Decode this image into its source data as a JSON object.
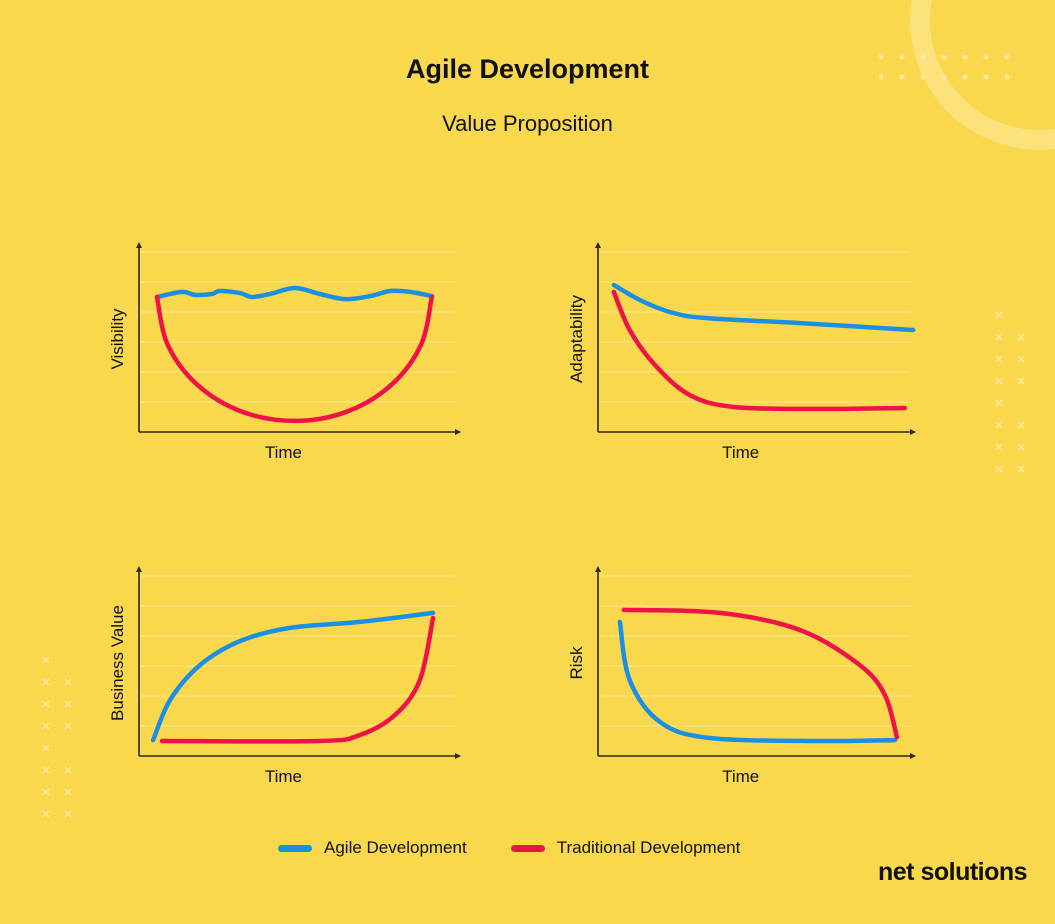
{
  "header": {
    "title": "Agile Development",
    "subtitle": "Value Proposition"
  },
  "colors": {
    "background": "#F9D84D",
    "agile": "#1A8FE3",
    "traditional": "#EE1249",
    "axis": "#2a2a1a",
    "grid": "#FBE58A"
  },
  "legend": [
    {
      "label": "Agile Development",
      "color": "#1A8FE3"
    },
    {
      "label": "Traditional Development",
      "color": "#EE1249"
    }
  ],
  "logo": {
    "text": "net solutions"
  },
  "chart_data": [
    {
      "type": "line",
      "title": "",
      "xlabel": "Time",
      "ylabel": "Visibility",
      "xlim": [
        0,
        10
      ],
      "ylim": [
        0,
        6.2
      ],
      "grid": true,
      "series": [
        {
          "name": "Agile Development",
          "points": [
            [
              0.56,
              4.5
            ],
            [
              1.34,
              4.67
            ],
            [
              1.74,
              4.57
            ],
            [
              2.27,
              4.6
            ],
            [
              2.52,
              4.7
            ],
            [
              3.15,
              4.63
            ],
            [
              3.52,
              4.5
            ],
            [
              4.08,
              4.6
            ],
            [
              4.86,
              4.8
            ],
            [
              5.64,
              4.6
            ],
            [
              6.42,
              4.43
            ],
            [
              7.2,
              4.53
            ],
            [
              7.82,
              4.7
            ],
            [
              8.44,
              4.67
            ],
            [
              9.13,
              4.53
            ]
          ]
        },
        {
          "name": "Traditional Development",
          "points": [
            [
              0.56,
              4.5
            ],
            [
              0.89,
              2.92
            ],
            [
              1.81,
              1.58
            ],
            [
              3.2,
              0.68
            ],
            [
              4.84,
              0.37
            ],
            [
              6.48,
              0.68
            ],
            [
              7.87,
              1.58
            ],
            [
              8.79,
              2.92
            ],
            [
              9.12,
              4.5
            ]
          ]
        }
      ]
    },
    {
      "type": "line",
      "title": "",
      "xlabel": "Time",
      "ylabel": "Adaptability",
      "xlim": [
        0,
        10
      ],
      "ylim": [
        0,
        6.2
      ],
      "grid": true,
      "series": [
        {
          "name": "Agile Development",
          "points": [
            [
              0.5,
              4.9
            ],
            [
              1.32,
              4.4
            ],
            [
              2.27,
              4.0
            ],
            [
              3.38,
              3.8
            ],
            [
              6.37,
              3.63
            ],
            [
              9.94,
              3.4
            ]
          ]
        },
        {
          "name": "Traditional Development",
          "points": [
            [
              0.5,
              4.67
            ],
            [
              1.0,
              3.4
            ],
            [
              1.8,
              2.23
            ],
            [
              2.9,
              1.23
            ],
            [
              4.32,
              0.83
            ],
            [
              7.0,
              0.77
            ],
            [
              9.68,
              0.8
            ]
          ]
        }
      ]
    },
    {
      "type": "line",
      "title": "",
      "xlabel": "Time",
      "ylabel": "Business Value",
      "xlim": [
        0,
        10
      ],
      "ylim": [
        0,
        6.2
      ],
      "grid": true,
      "series": [
        {
          "name": "Agile Development",
          "points": [
            [
              0.44,
              0.53
            ],
            [
              0.97,
              1.87
            ],
            [
              1.9,
              3.03
            ],
            [
              3.15,
              3.83
            ],
            [
              4.7,
              4.27
            ],
            [
              6.88,
              4.47
            ],
            [
              9.16,
              4.77
            ]
          ]
        },
        {
          "name": "Traditional Development",
          "points": [
            [
              0.72,
              0.5
            ],
            [
              5.64,
              0.5
            ],
            [
              6.88,
              0.7
            ],
            [
              7.98,
              1.37
            ],
            [
              8.75,
              2.53
            ],
            [
              9.16,
              4.6
            ]
          ]
        }
      ]
    },
    {
      "type": "line",
      "title": "",
      "xlabel": "Time",
      "ylabel": "Risk",
      "xlim": [
        0,
        10
      ],
      "ylim": [
        0,
        6.2
      ],
      "grid": true,
      "series": [
        {
          "name": "Agile Development",
          "points": [
            [
              0.69,
              4.47
            ],
            [
              1.0,
              2.53
            ],
            [
              1.96,
              1.13
            ],
            [
              3.53,
              0.6
            ],
            [
              7.0,
              0.5
            ],
            [
              9.37,
              0.53
            ]
          ]
        },
        {
          "name": "Traditional Development",
          "points": [
            [
              0.82,
              4.87
            ],
            [
              3.85,
              4.77
            ],
            [
              6.37,
              4.2
            ],
            [
              8.26,
              3.03
            ],
            [
              9.05,
              2.03
            ],
            [
              9.43,
              0.63
            ]
          ]
        }
      ]
    }
  ]
}
